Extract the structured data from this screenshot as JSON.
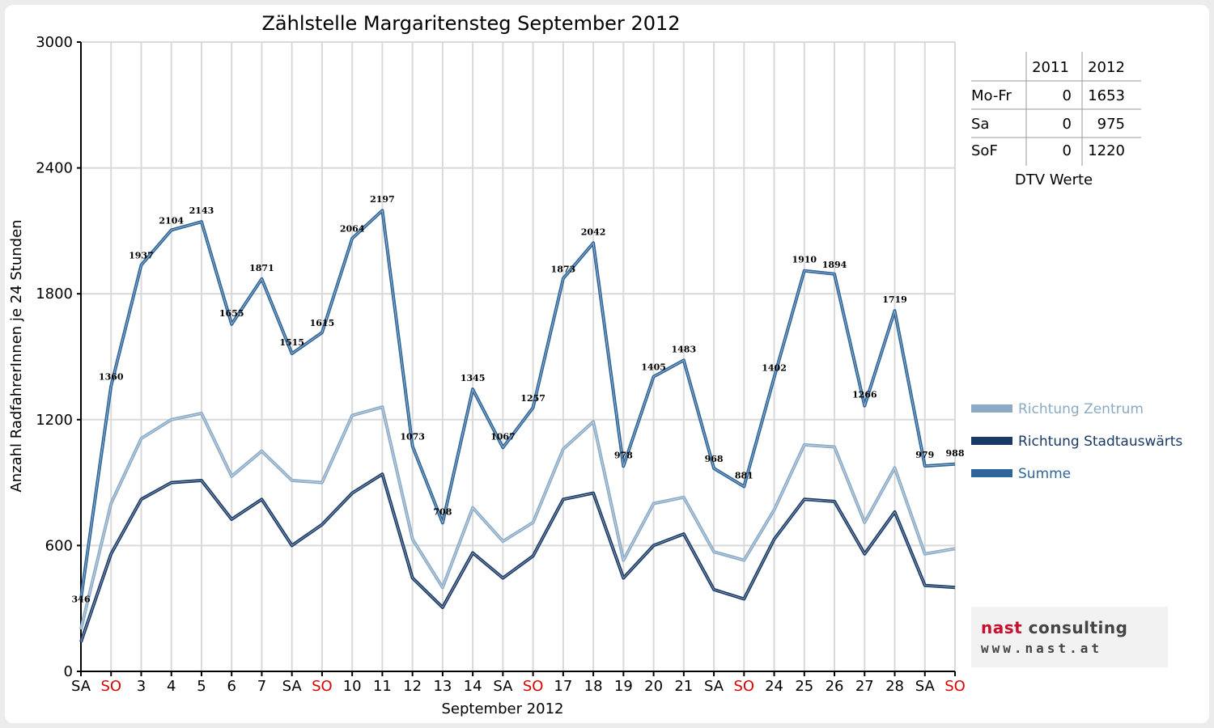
{
  "chart_data": {
    "type": "line",
    "title": "Zählstelle Margaritensteg September 2012",
    "xlabel": "September 2012",
    "ylabel": "Anzahl RadfahrerInnen je 24 Stunden",
    "ylim": [
      0,
      3000
    ],
    "yticks": [
      0,
      600,
      1200,
      1800,
      2400,
      3000
    ],
    "grid": true,
    "categories": [
      "SA",
      "SO",
      "3",
      "4",
      "5",
      "6",
      "7",
      "SA",
      "SO",
      "10",
      "11",
      "12",
      "13",
      "14",
      "SA",
      "SO",
      "17",
      "18",
      "19",
      "20",
      "21",
      "SA",
      "SO",
      "24",
      "25",
      "26",
      "27",
      "28",
      "SA",
      "SO"
    ],
    "weekend_flags": [
      0,
      1,
      0,
      0,
      0,
      0,
      0,
      0,
      1,
      0,
      0,
      0,
      0,
      0,
      0,
      1,
      0,
      0,
      0,
      0,
      0,
      0,
      1,
      0,
      0,
      0,
      0,
      0,
      0,
      1
    ],
    "series": [
      {
        "name": "Richtung Zentrum",
        "color": "#8aaac6",
        "values": [
          200,
          800,
          1110,
          1200,
          1230,
          930,
          1050,
          910,
          900,
          1220,
          1260,
          630,
          400,
          780,
          620,
          710,
          1060,
          1190,
          530,
          800,
          830,
          570,
          530,
          770,
          1080,
          1070,
          710,
          970,
          560,
          585
        ]
      },
      {
        "name": "Richtung Stadtauswärts",
        "color": "#1a3a66",
        "values": [
          140,
          560,
          820,
          900,
          910,
          725,
          820,
          600,
          700,
          850,
          940,
          445,
          305,
          565,
          445,
          550,
          820,
          850,
          445,
          600,
          655,
          390,
          345,
          630,
          820,
          810,
          560,
          760,
          410,
          400
        ]
      },
      {
        "name": "Summe",
        "color": "#2f6598",
        "values": [
          346,
          1360,
          1937,
          2104,
          2143,
          1655,
          1871,
          1515,
          1615,
          2064,
          2197,
          1073,
          708,
          1345,
          1067,
          1257,
          1873,
          2042,
          978,
          1405,
          1483,
          968,
          881,
          1402,
          1910,
          1894,
          1266,
          1719,
          979,
          988
        ]
      }
    ],
    "data_labels": [
      "346",
      "1360",
      "1937",
      "2104",
      "2143",
      "1655",
      "1871",
      "1515",
      "1615",
      "2064",
      "2197",
      "1073",
      "708",
      "1345",
      "1067",
      "1257",
      "1873",
      "2042",
      "978",
      "1405",
      "1483",
      "968",
      "881",
      "1402",
      "1910",
      "1894",
      "1266",
      "1719",
      "979",
      "988"
    ],
    "legend_position": "right"
  },
  "dtv": {
    "headers": [
      "2011",
      "2012"
    ],
    "rows": [
      {
        "label": "Mo-Fr",
        "v2011": "0",
        "v2012": "1653"
      },
      {
        "label": "Sa",
        "v2011": "0",
        "v2012": "975"
      },
      {
        "label": "SoF",
        "v2011": "0",
        "v2012": "1220"
      }
    ],
    "caption": "DTV Werte"
  },
  "logo": {
    "name_part1": "nast",
    "name_part2": " consulting",
    "url": "www.nast.at"
  },
  "colors": {
    "weekend_label": "#dd0000",
    "weekday_label": "#000000",
    "grid": "#d9d9d9"
  }
}
